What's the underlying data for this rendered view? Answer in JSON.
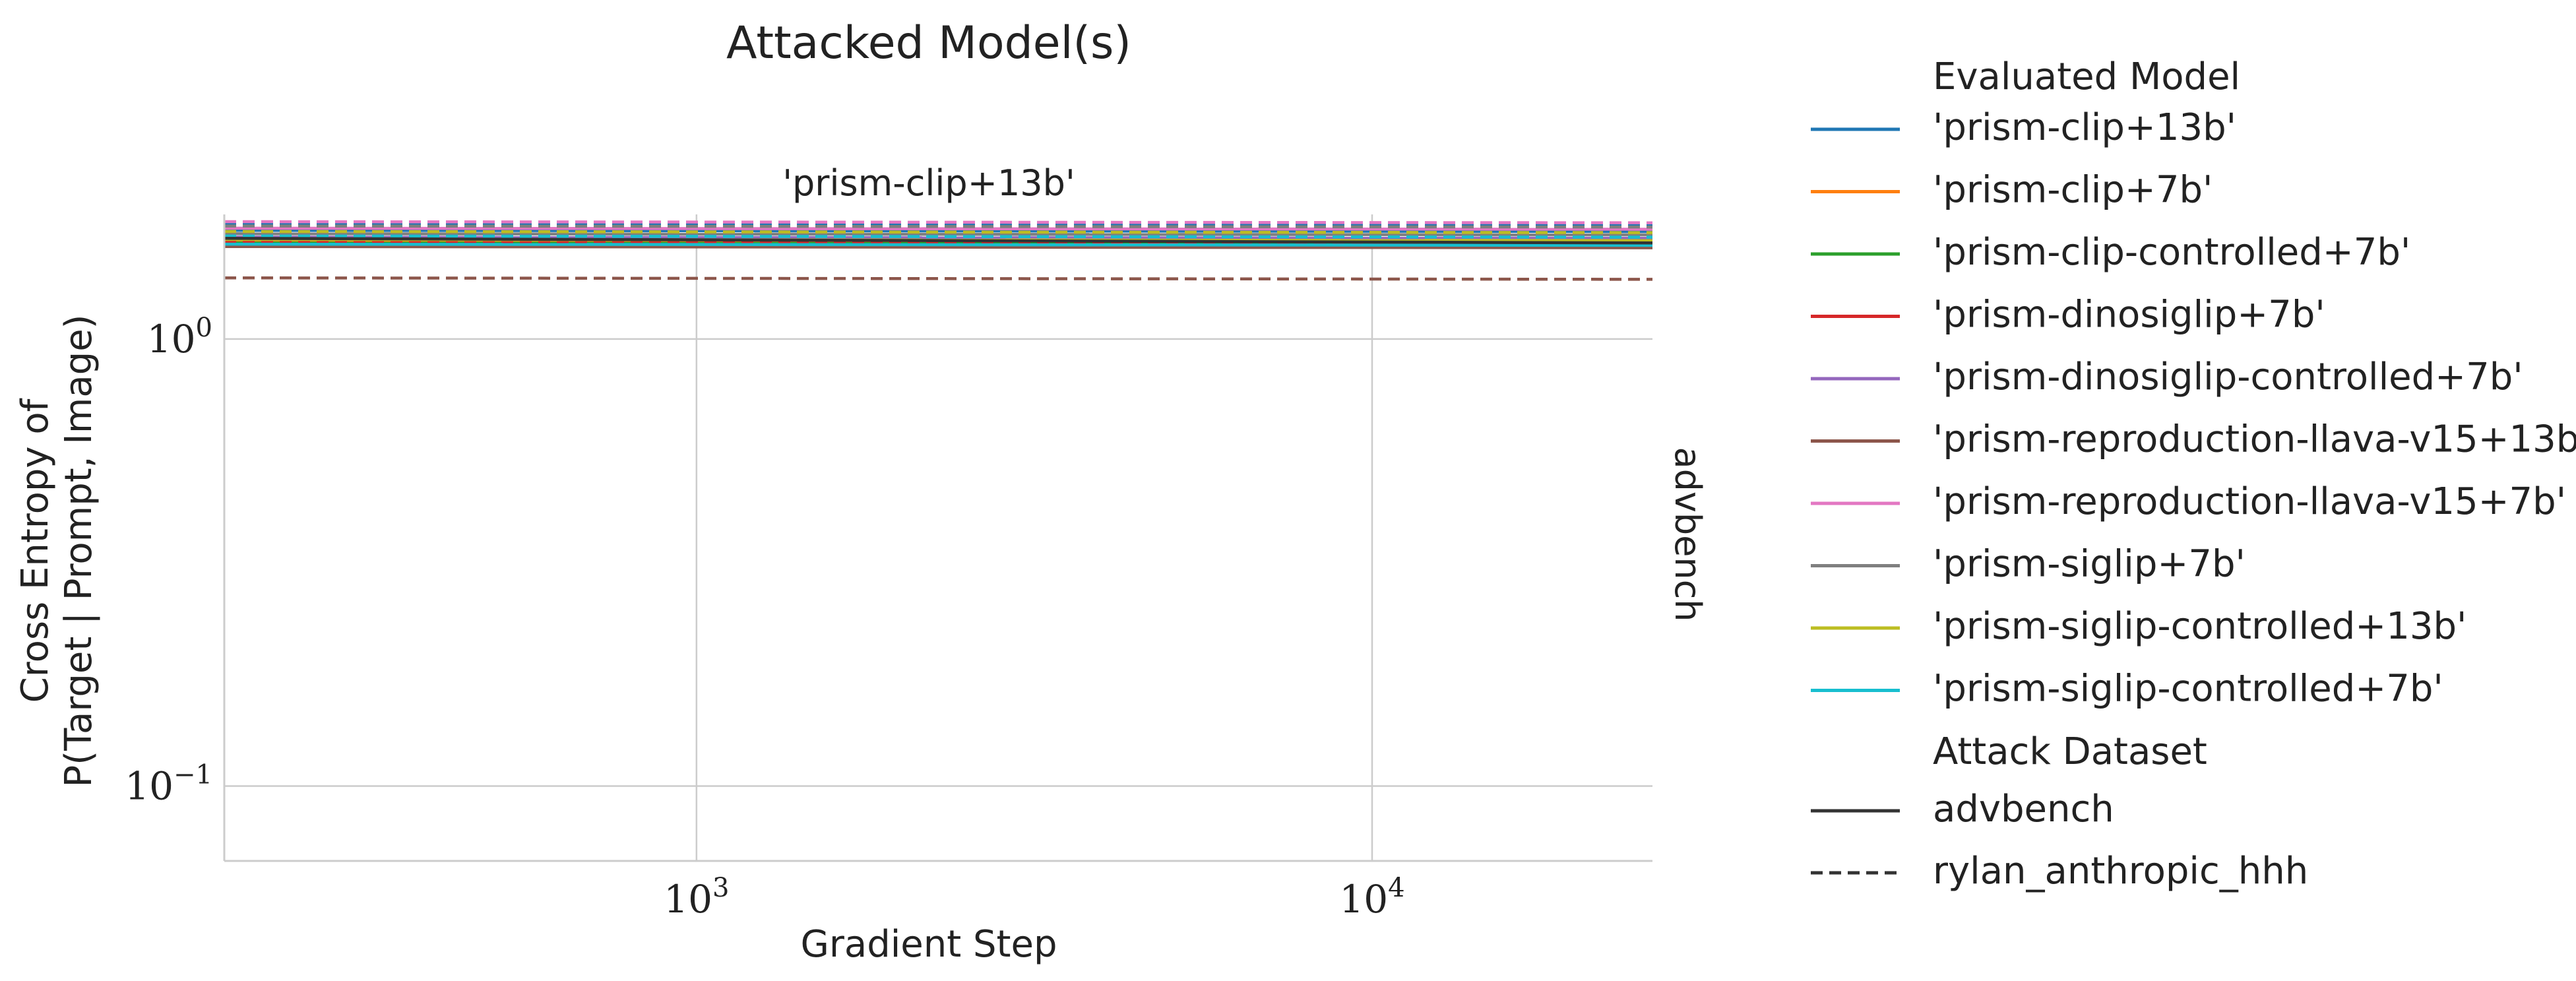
{
  "chart_data": {
    "type": "line",
    "title": "Attacked Model(s)",
    "subplot_title": "'prism-clip+13b'",
    "row_label": "advbench",
    "xlabel": "Gradient Step",
    "ylabel_line1": "Cross Entropy of",
    "ylabel_line2": "P(Target | Prompt, Image)",
    "x_scale": "log",
    "y_scale": "log",
    "xlim": [
      200,
      26000
    ],
    "ylim": [
      0.068,
      1.9
    ],
    "x_ticks": [
      {
        "value": 1000,
        "base": "10",
        "exp": "3"
      },
      {
        "value": 10000,
        "base": "10",
        "exp": "4"
      }
    ],
    "y_ticks": [
      {
        "value": 1,
        "base": "10",
        "exp": "0"
      },
      {
        "value": 0.1,
        "base": "10",
        "exp": "−1"
      }
    ],
    "grid": true,
    "x": [
      200,
      26000
    ],
    "series": [
      {
        "name": "'prism-clip+13b'",
        "dataset": "advbench",
        "color": "#1f77b4",
        "style": "solid",
        "values": [
          1.75,
          1.74
        ]
      },
      {
        "name": "'prism-clip+13b'",
        "dataset": "rylan_anthropic_hhh",
        "color": "#1f77b4",
        "style": "dashed",
        "values": [
          1.81,
          1.8
        ]
      },
      {
        "name": "'prism-clip+7b'",
        "dataset": "advbench",
        "color": "#ff7f0e",
        "style": "solid",
        "values": [
          1.66,
          1.65
        ]
      },
      {
        "name": "'prism-clip+7b'",
        "dataset": "rylan_anthropic_hhh",
        "color": "#ff7f0e",
        "style": "dashed",
        "values": [
          1.73,
          1.72
        ]
      },
      {
        "name": "'prism-clip-controlled+7b'",
        "dataset": "advbench",
        "color": "#2ca02c",
        "style": "solid",
        "values": [
          1.64,
          1.63
        ]
      },
      {
        "name": "'prism-clip-controlled+7b'",
        "dataset": "rylan_anthropic_hhh",
        "color": "#2ca02c",
        "style": "dashed",
        "values": [
          1.71,
          1.7
        ]
      },
      {
        "name": "'prism-dinosiglip+7b'",
        "dataset": "advbench",
        "color": "#d62728",
        "style": "solid",
        "values": [
          1.62,
          1.61
        ]
      },
      {
        "name": "'prism-dinosiglip+7b'",
        "dataset": "rylan_anthropic_hhh",
        "color": "#d62728",
        "style": "dashed",
        "values": [
          1.65,
          1.64
        ]
      },
      {
        "name": "'prism-dinosiglip-controlled+7b'",
        "dataset": "advbench",
        "color": "#9467bd",
        "style": "solid",
        "values": [
          1.69,
          1.68
        ]
      },
      {
        "name": "'prism-dinosiglip-controlled+7b'",
        "dataset": "rylan_anthropic_hhh",
        "color": "#9467bd",
        "style": "dashed",
        "values": [
          1.77,
          1.76
        ]
      },
      {
        "name": "'prism-reproduction-llava-v15+13b'",
        "dataset": "advbench",
        "color": "#8c564b",
        "style": "solid",
        "values": [
          1.61,
          1.6
        ]
      },
      {
        "name": "'prism-reproduction-llava-v15+13b'",
        "dataset": "rylan_anthropic_hhh",
        "color": "#8c564b",
        "style": "dashed",
        "values": [
          1.37,
          1.36
        ]
      },
      {
        "name": "'prism-reproduction-llava-v15+7b'",
        "dataset": "advbench",
        "color": "#e377c2",
        "style": "solid",
        "values": [
          1.77,
          1.76
        ]
      },
      {
        "name": "'prism-reproduction-llava-v15+7b'",
        "dataset": "rylan_anthropic_hhh",
        "color": "#e377c2",
        "style": "dashed",
        "values": [
          1.83,
          1.82
        ]
      },
      {
        "name": "'prism-siglip+7b'",
        "dataset": "advbench",
        "color": "#7f7f7f",
        "style": "solid",
        "values": [
          1.72,
          1.71
        ]
      },
      {
        "name": "'prism-siglip+7b'",
        "dataset": "rylan_anthropic_hhh",
        "color": "#7f7f7f",
        "style": "dashed",
        "values": [
          1.79,
          1.78
        ]
      },
      {
        "name": "'prism-siglip-controlled+13b'",
        "dataset": "advbench",
        "color": "#bcbd22",
        "style": "solid",
        "values": [
          1.67,
          1.66
        ]
      },
      {
        "name": "'prism-siglip-controlled+13b'",
        "dataset": "rylan_anthropic_hhh",
        "color": "#bcbd22",
        "style": "dashed",
        "values": [
          1.74,
          1.73
        ]
      },
      {
        "name": "'prism-siglip-controlled+7b'",
        "dataset": "advbench",
        "color": "#17becf",
        "style": "solid",
        "values": [
          1.63,
          1.62
        ]
      },
      {
        "name": "'prism-siglip-controlled+7b'",
        "dataset": "rylan_anthropic_hhh",
        "color": "#17becf",
        "style": "dashed",
        "values": [
          1.7,
          1.69
        ]
      },
      {
        "name": "'prism-clip+13b'",
        "dataset": "advbench",
        "color": "#333333",
        "style": "solid",
        "values": [
          1.68,
          1.64
        ]
      }
    ]
  },
  "legend": {
    "placement": "right",
    "model_header": "Evaluated Model",
    "models": [
      {
        "label": "'prism-clip+13b'",
        "color": "#1f77b4"
      },
      {
        "label": "'prism-clip+7b'",
        "color": "#ff7f0e"
      },
      {
        "label": "'prism-clip-controlled+7b'",
        "color": "#2ca02c"
      },
      {
        "label": "'prism-dinosiglip+7b'",
        "color": "#d62728"
      },
      {
        "label": "'prism-dinosiglip-controlled+7b'",
        "color": "#9467bd"
      },
      {
        "label": "'prism-reproduction-llava-v15+13b'",
        "color": "#8c564b"
      },
      {
        "label": "'prism-reproduction-llava-v15+7b'",
        "color": "#e377c2"
      },
      {
        "label": "'prism-siglip+7b'",
        "color": "#7f7f7f"
      },
      {
        "label": "'prism-siglip-controlled+13b'",
        "color": "#bcbd22"
      },
      {
        "label": "'prism-siglip-controlled+7b'",
        "color": "#17becf"
      }
    ],
    "dataset_header": "Attack Dataset",
    "datasets": [
      {
        "label": "advbench",
        "style": "solid"
      },
      {
        "label": "rylan_anthropic_hhh",
        "style": "dashed"
      }
    ]
  }
}
